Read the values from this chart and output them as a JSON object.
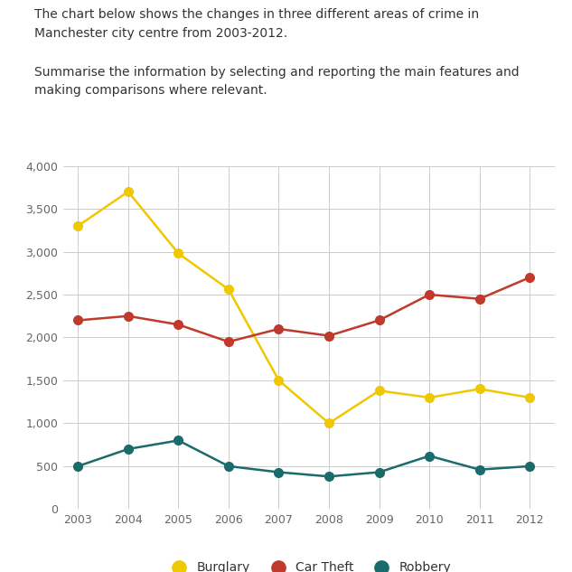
{
  "years": [
    2003,
    2004,
    2005,
    2006,
    2007,
    2008,
    2009,
    2010,
    2011,
    2012
  ],
  "burglary": [
    3300,
    3700,
    2980,
    2560,
    1500,
    1000,
    1380,
    1300,
    1400,
    1300
  ],
  "car_theft": [
    2200,
    2250,
    2150,
    1950,
    2100,
    2020,
    2200,
    2500,
    2450,
    2700
  ],
  "robbery": [
    500,
    700,
    800,
    500,
    430,
    380,
    430,
    620,
    460,
    500
  ],
  "burglary_color": "#f0c800",
  "car_theft_color": "#c0392b",
  "robbery_color": "#1a6b6b",
  "title_text": "The chart below shows the changes in three different areas of crime in\nManchester city centre from 2003-2012.",
  "subtitle_text": "Summarise the information by selecting and reporting the main features and\nmaking comparisons where relevant.",
  "ylim": [
    0,
    4000
  ],
  "yticks": [
    0,
    500,
    1000,
    1500,
    2000,
    2500,
    3000,
    3500,
    4000
  ],
  "background_color": "#ffffff",
  "grid_color": "#cccccc",
  "legend_labels": [
    "Burglary",
    "Car Theft",
    "Robbery"
  ],
  "marker_size": 7,
  "line_width": 1.8,
  "text_color": "#333333",
  "tick_color": "#666666"
}
